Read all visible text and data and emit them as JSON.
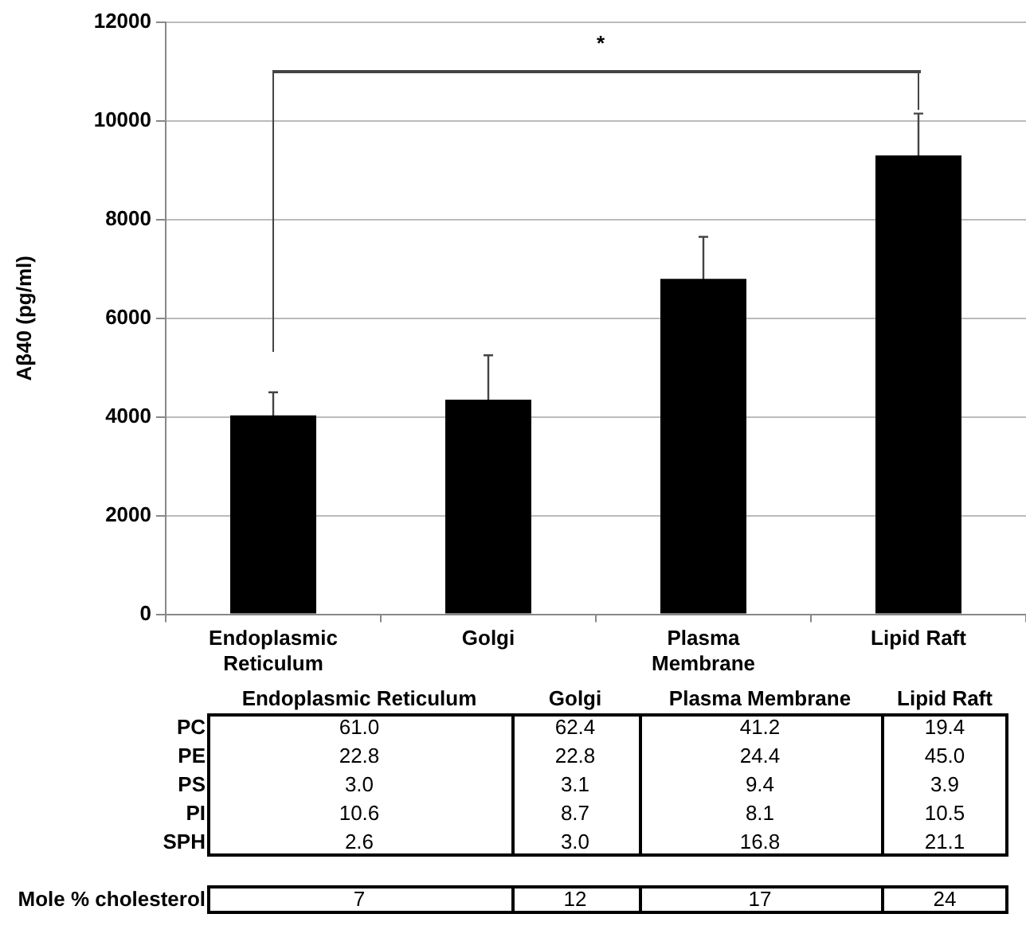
{
  "chart_data": [
    {
      "type": "bar",
      "ylabel": "Aβ40 (pg/ml)",
      "categories": [
        "Endoplasmic Reticulum",
        "Golgi",
        "Plasma Membrane",
        "Lipid Raft"
      ],
      "values": [
        4030,
        4350,
        6800,
        9300
      ],
      "errors": [
        470,
        900,
        850,
        850
      ],
      "color": "#000000",
      "ylim": [
        0,
        12000
      ],
      "yticks": [
        0,
        2000,
        4000,
        6000,
        8000,
        10000,
        12000
      ],
      "grid": "y",
      "annotations": [
        "*"
      ]
    },
    {
      "type": "heatmap",
      "categories": [
        "Endoplasmic Reticulum",
        "Golgi",
        "Plasma Membrane",
        "Lipid Raft"
      ],
      "y_categories": [
        "PC",
        "PE",
        "PS",
        "PI",
        "SPH"
      ],
      "cells": [
        [
          61.0,
          62.4,
          41.2,
          19.4
        ],
        [
          22.8,
          22.8,
          24.4,
          45.0
        ],
        [
          3.0,
          3.1,
          9.4,
          3.9
        ],
        [
          10.6,
          8.7,
          8.1,
          10.5
        ],
        [
          2.6,
          3.0,
          16.8,
          21.1
        ]
      ],
      "cell_labels": [
        [
          "61.0",
          "62.4",
          "41.2",
          "19.4"
        ],
        [
          "22.8",
          "22.8",
          "24.4",
          "45.0"
        ],
        [
          "3.0",
          "3.1",
          "9.4",
          "3.9"
        ],
        [
          "10.6",
          "8.7",
          "8.1",
          "10.5"
        ],
        [
          "2.6",
          "3.0",
          "16.8",
          "21.1"
        ]
      ]
    },
    {
      "type": "heatmap",
      "categories": [
        null,
        null,
        null,
        null
      ],
      "y_categories": [
        "Mole % cholesterol"
      ],
      "cells": [
        [
          7,
          12,
          17,
          24
        ]
      ],
      "cell_labels": [
        [
          "7",
          "12",
          "17",
          "24"
        ]
      ]
    }
  ]
}
